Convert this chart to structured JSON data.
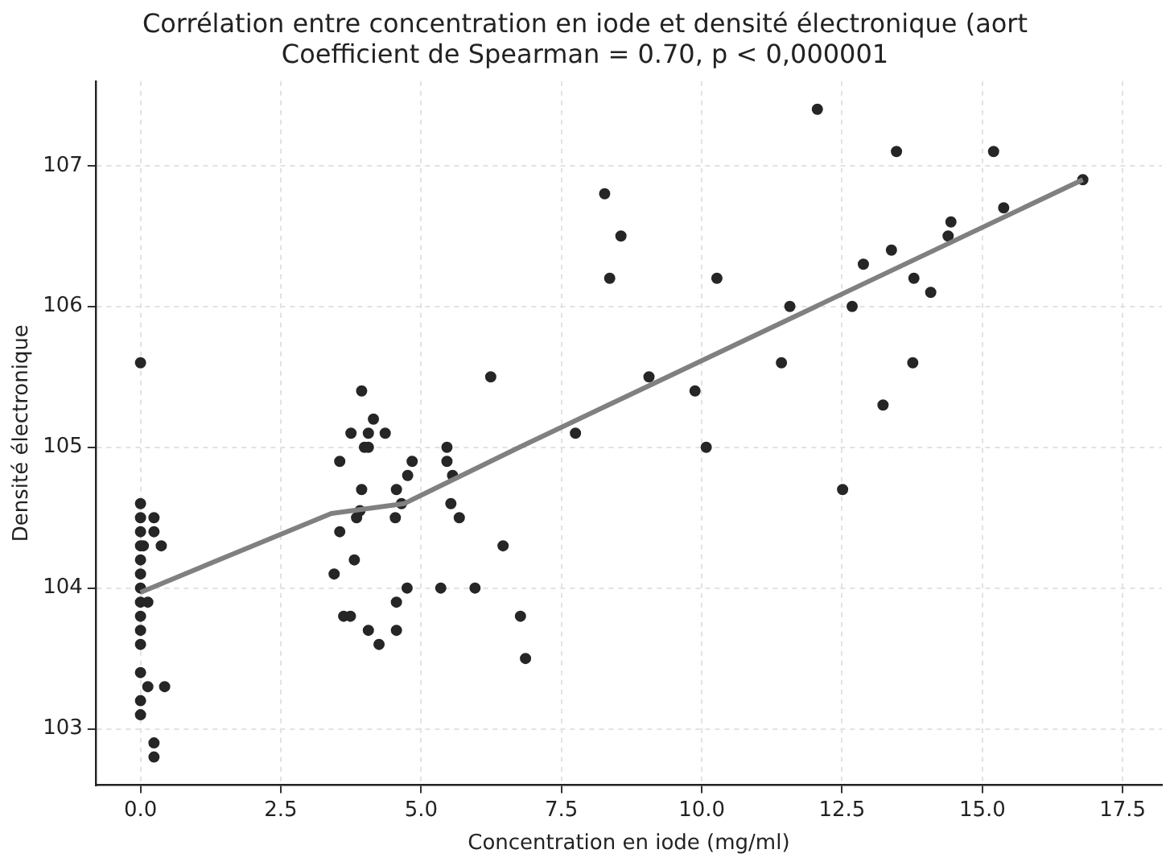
{
  "chart_data": {
    "type": "scatter",
    "title": "Corrélation entre concentration en iode et densité électronique (aort",
    "subtitle": "Coefficient de Spearman = 0.70, p < 0,000001",
    "xlabel": "Concentration en iode (mg/ml)",
    "ylabel": "Densité électronique",
    "xlim": [
      -0.8,
      18.2
    ],
    "ylim": [
      102.6,
      107.6
    ],
    "xticks": [
      {
        "value": 0,
        "label": "0.0"
      },
      {
        "value": 2.5,
        "label": "2.5"
      },
      {
        "value": 5,
        "label": "5.0"
      },
      {
        "value": 7.5,
        "label": "7.5"
      },
      {
        "value": 10,
        "label": "10.0"
      },
      {
        "value": 12.5,
        "label": "12.5"
      },
      {
        "value": 15,
        "label": "15.0"
      },
      {
        "value": 17.5,
        "label": "17.5"
      }
    ],
    "yticks": [
      103,
      104,
      105,
      106,
      107
    ],
    "grid": true,
    "legend": false,
    "series": [
      {
        "type": "scatter",
        "marker": "circle",
        "color": "#262626",
        "x": [
          0,
          0,
          0.24,
          0,
          0.24,
          0,
          0.05,
          0.37,
          0,
          0,
          0,
          0,
          0.13,
          0,
          0,
          0,
          0,
          0,
          0.13,
          0.43,
          0,
          0,
          0.24,
          0.24,
          3.94,
          4.15,
          3.75,
          4.06,
          4.36,
          3.99,
          4.06,
          3.55,
          4.84,
          4.76,
          3.94,
          4.56,
          4.65,
          3.91,
          3.85,
          4.54,
          3.55,
          3.81,
          3.45,
          4.75,
          5.35,
          5.96,
          4.56,
          3.62,
          3.74,
          4.06,
          4.56,
          4.25,
          5.46,
          5.46,
          5.56,
          5.53,
          5.68,
          6.24,
          6.46,
          6.77,
          6.86,
          7.75,
          12.06,
          13.47,
          15.2,
          16.79,
          8.27,
          8.56,
          8.36,
          10.27,
          15.38,
          14.44,
          14.39,
          13.38,
          12.88,
          13.78,
          14.08,
          11.57,
          12.68,
          11.42,
          13.76,
          9.06,
          9.88,
          13.23,
          10.08,
          12.51
        ],
        "values": [
          105.6,
          104.6,
          104.5,
          104.5,
          104.4,
          104.4,
          104.3,
          104.3,
          104.3,
          104.2,
          104.1,
          104.0,
          103.9,
          103.9,
          103.8,
          103.7,
          103.6,
          103.4,
          103.3,
          103.3,
          103.2,
          103.1,
          102.9,
          102.8,
          105.4,
          105.2,
          105.1,
          105.1,
          105.1,
          105.0,
          105.0,
          104.9,
          104.9,
          104.8,
          104.7,
          104.7,
          104.6,
          104.55,
          104.5,
          104.5,
          104.4,
          104.2,
          104.1,
          104.0,
          104.0,
          104.0,
          103.9,
          103.8,
          103.8,
          103.7,
          103.7,
          103.6,
          105.0,
          104.9,
          104.8,
          104.6,
          104.5,
          105.5,
          104.3,
          103.8,
          103.5,
          105.1,
          107.4,
          107.1,
          107.1,
          106.9,
          106.8,
          106.5,
          106.2,
          106.2,
          106.7,
          106.6,
          106.5,
          106.4,
          106.3,
          106.2,
          106.1,
          106.0,
          106.0,
          105.6,
          105.6,
          105.5,
          105.4,
          105.3,
          105.0,
          104.7
        ]
      },
      {
        "type": "line",
        "marker": "none",
        "color": "#808080",
        "x": [
          0,
          3.4,
          4.7,
          6.75,
          16.79
        ],
        "values": [
          103.97,
          104.53,
          104.6,
          105.0,
          106.9
        ]
      }
    ]
  }
}
